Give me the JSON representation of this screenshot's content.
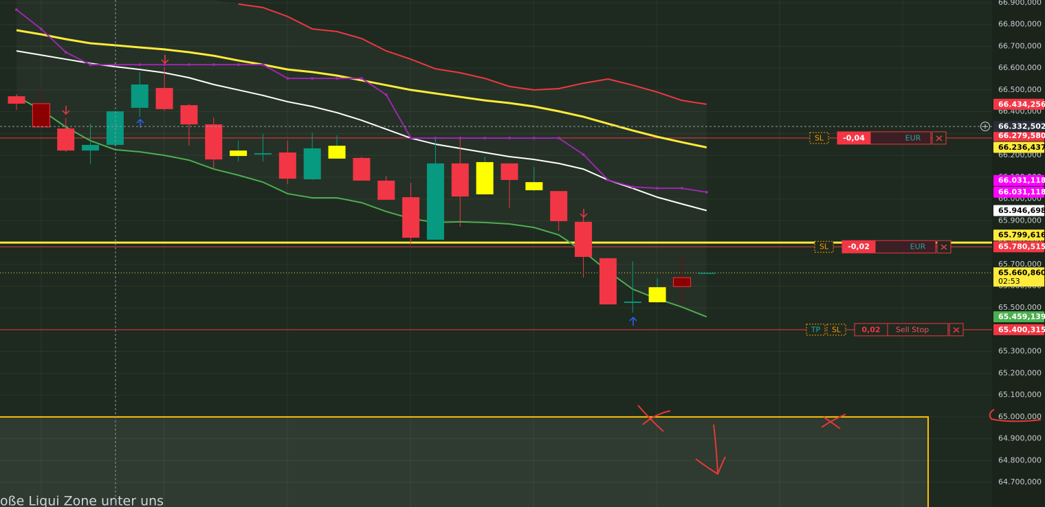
{
  "chart_data": {
    "type": "candlestick",
    "categories": [
      null,
      null,
      null,
      null,
      null,
      null,
      null,
      null,
      null,
      null,
      null,
      null,
      null,
      null,
      null,
      null,
      null,
      null,
      null,
      null,
      null,
      null,
      null,
      null,
      null,
      null,
      null,
      null,
      null
    ],
    "candles": {
      "open": [
        66.471,
        66.437,
        66.323,
        66.222,
        66.248,
        66.418,
        66.509,
        66.43,
        66.342,
        66.197,
        66.204,
        66.213,
        66.09,
        66.185,
        66.188,
        66.084,
        66.008,
        65.813,
        66.163,
        66.021,
        66.163,
        66.04,
        66.036,
        65.895,
        65.728,
        65.523,
        65.526,
        65.639,
        65.661
      ],
      "high": [
        66.481,
        66.503,
        66.371,
        66.345,
        66.402,
        66.582,
        66.604,
        66.437,
        66.374,
        66.267,
        66.298,
        66.267,
        66.304,
        66.292,
        66.194,
        66.106,
        66.074,
        66.276,
        66.276,
        66.194,
        66.163,
        66.147,
        66.036,
        65.923,
        65.728,
        65.715,
        65.636,
        65.74,
        65.661
      ],
      "low": [
        66.408,
        66.33,
        66.216,
        66.159,
        66.244,
        66.377,
        66.405,
        66.244,
        66.141,
        66.172,
        66.172,
        66.068,
        66.087,
        66.185,
        66.084,
        65.996,
        65.791,
        65.813,
        65.873,
        66.021,
        65.958,
        66.036,
        65.854,
        65.639,
        65.516,
        65.479,
        65.523,
        65.51,
        65.661
      ],
      "close": [
        66.437,
        66.33,
        66.222,
        66.248,
        66.402,
        66.525,
        66.412,
        66.342,
        66.181,
        66.222,
        66.21,
        66.093,
        66.232,
        66.244,
        66.084,
        65.996,
        65.822,
        66.163,
        66.011,
        66.169,
        66.087,
        66.077,
        65.898,
        65.734,
        65.516,
        65.529,
        65.595,
        65.598,
        65.661
      ],
      "colors": [
        "#f23645",
        "#8b0000",
        "#f23645",
        "#089981",
        "#089981",
        "#089981",
        "#f23645",
        "#f23645",
        "#f23645",
        "#ffff00",
        "#089981",
        "#f23645",
        "#089981",
        "#ffff00",
        "#f23645",
        "#f23645",
        "#f23645",
        "#089981",
        "#f23645",
        "#ffff00",
        "#f23645",
        "#ffff00",
        "#f23645",
        "#f23645",
        "#f23645",
        "#089981",
        "#ffff00",
        "#8b0000",
        "#089981"
      ]
    },
    "lines": [
      {
        "color": "#f23645",
        "values": [
          null,
          null,
          null,
          null,
          null,
          null,
          null,
          null,
          null,
          66.894,
          66.878,
          66.837,
          66.78,
          66.768,
          66.736,
          66.679,
          66.641,
          66.597,
          66.579,
          66.553,
          66.516,
          66.5,
          66.506,
          66.531,
          66.55,
          66.522,
          66.49,
          66.452,
          66.434256
        ]
      },
      {
        "color": "#ffeb3b",
        "values": [
          66.774,
          66.755,
          66.733,
          66.714,
          66.705,
          66.695,
          66.686,
          66.673,
          66.657,
          66.635,
          66.616,
          66.594,
          66.582,
          66.566,
          66.544,
          66.522,
          66.5,
          66.484,
          66.468,
          66.452,
          66.44,
          66.424,
          66.402,
          66.377,
          66.345,
          66.314,
          66.285,
          66.26,
          66.236437
        ]
      },
      {
        "color": "#ffffff",
        "values": [
          66.679,
          66.66,
          66.641,
          66.622,
          66.607,
          66.594,
          66.579,
          66.556,
          66.525,
          66.5,
          66.475,
          66.446,
          66.424,
          66.396,
          66.361,
          66.32,
          66.279,
          66.251,
          66.232,
          66.213,
          66.194,
          66.181,
          66.163,
          66.137,
          66.087,
          66.049,
          66.008,
          65.977,
          65.946698
        ]
      },
      {
        "color": "#9c27b0",
        "markers": true,
        "values": [
          66.868,
          66.78,
          66.673,
          66.616,
          66.616,
          66.616,
          66.616,
          66.616,
          66.616,
          66.616,
          66.616,
          66.553,
          66.553,
          66.553,
          66.553,
          66.478,
          66.279,
          66.279,
          66.279,
          66.279,
          66.279,
          66.279,
          66.279,
          66.204,
          66.087,
          66.055,
          66.049,
          66.049,
          66.031118
        ]
      },
      {
        "color": "#4caf50",
        "values": [
          66.471,
          66.408,
          66.33,
          66.267,
          66.226,
          66.216,
          66.2,
          66.178,
          66.137,
          66.109,
          66.077,
          66.024,
          66.005,
          66.005,
          65.983,
          65.942,
          65.91,
          65.892,
          65.895,
          65.892,
          65.885,
          65.869,
          65.835,
          65.759,
          65.668,
          65.586,
          65.542,
          65.504,
          65.459139
        ]
      }
    ],
    "ylim": [
      64.5867,
      66.9126
    ],
    "yticks": [
      {
        "value": 66.9,
        "label": "66.900,000"
      },
      {
        "value": 66.8,
        "label": "66.800,000"
      },
      {
        "value": 66.7,
        "label": "66.700,000"
      },
      {
        "value": 66.6,
        "label": "66.600,000"
      },
      {
        "value": 66.5,
        "label": "66.500,000"
      },
      {
        "value": 66.4,
        "label": "66.400,000"
      },
      {
        "value": 66.3,
        "label": "66.300,000"
      },
      {
        "value": 66.2,
        "label": "66.200,000"
      },
      {
        "value": 66.1,
        "label": "66.100,000"
      },
      {
        "value": 66.0,
        "label": "66.000,000"
      },
      {
        "value": 65.9,
        "label": "65.900,000"
      },
      {
        "value": 65.8,
        "label": "65.800,000"
      },
      {
        "value": 65.7,
        "label": "65.700,000"
      },
      {
        "value": 65.6,
        "label": "65.600,000"
      },
      {
        "value": 65.5,
        "label": "65.500,000"
      },
      {
        "value": 65.4,
        "label": "65.400,000"
      },
      {
        "value": 65.3,
        "label": "65.300,000"
      },
      {
        "value": 65.2,
        "label": "65.200,000"
      },
      {
        "value": 65.1,
        "label": "65.100,000"
      },
      {
        "value": 65.0,
        "label": "65.000,000"
      },
      {
        "value": 64.9,
        "label": "64.900,000"
      },
      {
        "value": 64.8,
        "label": "64.800,000"
      },
      {
        "value": 64.7,
        "label": "64.700,000"
      }
    ],
    "grid": true,
    "levels": [
      {
        "value": 66.27958,
        "color": "#f23645",
        "line_width": 1
      },
      {
        "value": 65.799616,
        "color": "#ffeb3b",
        "line_width": 3
      },
      {
        "value": 65.780515,
        "color": "#f23645",
        "line_width": 1
      },
      {
        "value": 65.400315,
        "color": "#f23645",
        "line_width": 1
      }
    ],
    "current_price": {
      "value": 65.66086,
      "label": "65.660,860",
      "color": "#ffeb3b",
      "countdown": "02:53"
    },
    "price_tags": [
      {
        "value": 66.434256,
        "label": "66.434,256",
        "color": "#f23645",
        "text_color": "#ffffff"
      },
      {
        "value": 66.27958,
        "label": "66.279,580",
        "color": "#f23645",
        "text_color": "#ffffff"
      },
      {
        "value": 66.236437,
        "label": "66.236,437",
        "color": "#ffeb3b",
        "text_color": "#000000"
      },
      {
        "value": 66.031118,
        "label": "66.031,118",
        "color": "#ff00ff",
        "text_color": "#ffffff"
      },
      {
        "value": 66.031118,
        "label": "66.031,118",
        "color": "#ff00ff",
        "text_color": "#ffffff"
      },
      {
        "value": 65.946698,
        "label": "65.946,698",
        "color": "#ffffff",
        "text_color": "#000000"
      },
      {
        "value": 65.799616,
        "label": "65.799,616",
        "color": "#ffeb3b",
        "text_color": "#000000"
      },
      {
        "value": 65.780515,
        "label": "65.780,515",
        "color": "#f23645",
        "text_color": "#ffffff"
      },
      {
        "value": 65.459139,
        "label": "65.459,139",
        "color": "#4caf50",
        "text_color": "#ffffff"
      },
      {
        "value": 65.400315,
        "label": "65.400,315",
        "color": "#f23645",
        "text_color": "#ffffff"
      }
    ],
    "crosshair": {
      "value": 66.332502,
      "label": "66.332,502"
    },
    "orders": [
      {
        "value": 66.27958,
        "tags": [
          "SL"
        ],
        "pnl": "-0,04",
        "currency": "EUR"
      },
      {
        "value": 65.780515,
        "tags": [
          "SL"
        ],
        "pnl": "-0,02",
        "currency": "EUR"
      },
      {
        "value": 65.400315,
        "tags": [
          "TP",
          "SL"
        ],
        "pnl": "0,02",
        "order_type": "Sell Stop"
      }
    ],
    "zone": {
      "top": 65.0,
      "label": "oße Liqui Zone unter uns",
      "color": "#ffc107"
    }
  }
}
